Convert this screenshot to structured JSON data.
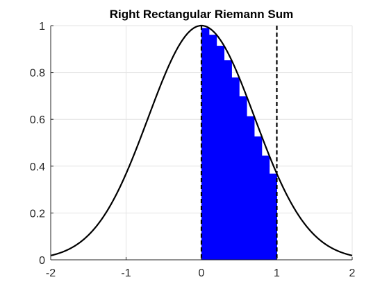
{
  "chart_data": {
    "type": "area",
    "title": "Right Rectangular Riemann Sum",
    "xlabel": "",
    "ylabel": "",
    "xlim": [
      -2,
      2
    ],
    "ylim": [
      0,
      1
    ],
    "x_ticks": [
      -2,
      -1,
      0,
      1,
      2
    ],
    "y_ticks": [
      0,
      0.2,
      0.4,
      0.6,
      0.8,
      1
    ],
    "x_tick_labels": [
      "-2",
      "-1",
      "0",
      "1",
      "2"
    ],
    "y_tick_labels": [
      "0",
      "0.2",
      "0.4",
      "0.6",
      "0.8",
      "1"
    ],
    "grid": true,
    "curve": {
      "function": "exp(-x^2)",
      "color": "#000000"
    },
    "interval": [
      0,
      1
    ],
    "interval_line_style": "dashed",
    "rectangles": {
      "count": 10,
      "rule": "right",
      "color": "#0000ff",
      "x_left": [
        0.0,
        0.1,
        0.2,
        0.3,
        0.4,
        0.5,
        0.6,
        0.7,
        0.8,
        0.9
      ],
      "heights": [
        0.99,
        0.961,
        0.914,
        0.852,
        0.779,
        0.698,
        0.613,
        0.527,
        0.445,
        0.368
      ]
    }
  }
}
